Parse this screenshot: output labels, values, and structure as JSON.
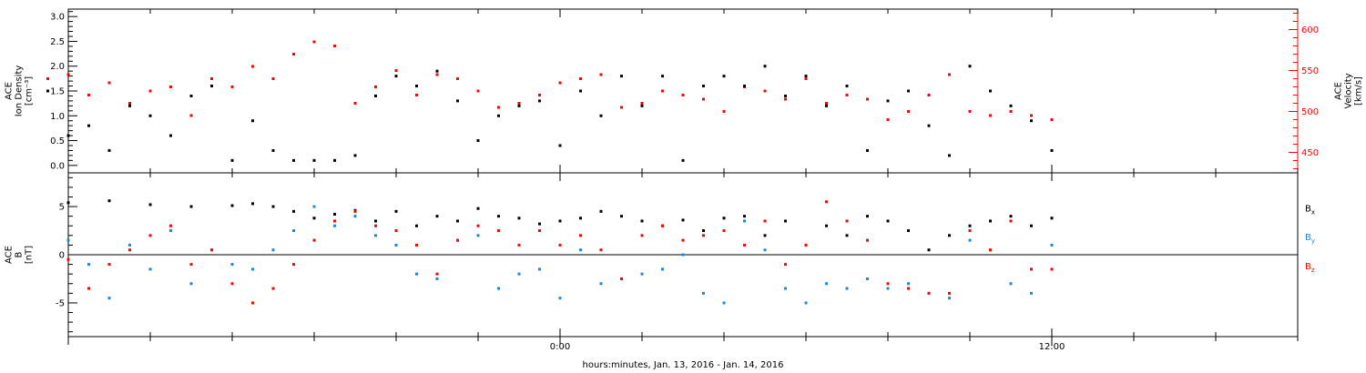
{
  "chart_data": [
    {
      "type": "scatter",
      "panel": "top",
      "ylabel_left_lines": [
        "ACE",
        "Ion Density",
        "[cm⁻³]"
      ],
      "ylabel_right_lines": [
        "ACE",
        "Velocity",
        "[km/s]"
      ],
      "y_left_ticks": [
        "0.0",
        "0.5",
        "1.0",
        "1.5",
        "2.0",
        "2.5",
        "3.0"
      ],
      "y_left_range": [
        -0.15,
        3.15
      ],
      "y_right_ticks": [
        "450",
        "500",
        "550",
        "600"
      ],
      "y_right_range": [
        425,
        625
      ],
      "colors": {
        "density": "#000000",
        "velocity": "#ff0000"
      },
      "series": [
        {
          "name": "Ion Density",
          "axis": "left",
          "color": "#000000",
          "x": [
            -12.5,
            -12.0,
            -11.5,
            -11.0,
            -10.5,
            -10.0,
            -9.5,
            -9.0,
            -8.5,
            -8.0,
            -7.5,
            -7.0,
            -6.5,
            -6.0,
            -5.5,
            -5.0,
            -4.5,
            -4.0,
            -3.5,
            -3.0,
            -2.5,
            -2.0,
            -1.5,
            -1.0,
            -0.5,
            0.0,
            0.5,
            1.0,
            1.5,
            2.0,
            2.5,
            3.0,
            3.5,
            4.0,
            4.5,
            5.0,
            5.5,
            6.0,
            6.5,
            7.0,
            7.5,
            8.0,
            8.5,
            9.0,
            9.5,
            10.0,
            10.5,
            11.0,
            11.5,
            12.0
          ],
          "y": [
            1.5,
            0.6,
            0.8,
            0.3,
            1.2,
            1.0,
            0.6,
            1.4,
            1.6,
            0.1,
            0.9,
            0.3,
            0.1,
            0.1,
            0.1,
            0.2,
            1.4,
            1.8,
            1.6,
            1.9,
            1.3,
            0.5,
            1.0,
            1.2,
            1.3,
            0.4,
            1.5,
            1.0,
            1.8,
            1.2,
            1.8,
            0.1,
            1.6,
            1.8,
            1.6,
            2.0,
            1.4,
            1.8,
            1.2,
            1.6,
            0.3,
            1.3,
            1.5,
            0.8,
            0.2,
            2.0,
            1.5,
            1.2,
            0.9,
            0.3
          ]
        },
        {
          "name": "Velocity",
          "axis": "right",
          "color": "#ff0000",
          "x": [
            -12.5,
            -12.0,
            -11.5,
            -11.0,
            -10.5,
            -10.0,
            -9.5,
            -9.0,
            -8.5,
            -8.0,
            -7.5,
            -7.0,
            -6.5,
            -6.0,
            -5.5,
            -5.0,
            -4.5,
            -4.0,
            -3.5,
            -3.0,
            -2.5,
            -2.0,
            -1.5,
            -1.0,
            -0.5,
            0.0,
            0.5,
            1.0,
            1.5,
            2.0,
            2.5,
            3.0,
            3.5,
            4.0,
            4.5,
            5.0,
            5.5,
            6.0,
            6.5,
            7.0,
            7.5,
            8.0,
            8.5,
            9.0,
            9.5,
            10.0,
            10.5,
            11.0,
            11.5,
            12.0
          ],
          "y": [
            540,
            545,
            520,
            535,
            510,
            525,
            530,
            495,
            540,
            530,
            555,
            540,
            570,
            585,
            580,
            510,
            530,
            550,
            520,
            545,
            540,
            525,
            505,
            510,
            520,
            535,
            540,
            545,
            505,
            510,
            525,
            520,
            515,
            500,
            530,
            525,
            515,
            540,
            510,
            520,
            515,
            490,
            500,
            520,
            545,
            500,
            495,
            500,
            495,
            490
          ]
        }
      ]
    },
    {
      "type": "scatter",
      "panel": "bottom",
      "ylabel_left_lines": [
        "ACE",
        "B",
        "[nT]"
      ],
      "y_ticks": [
        "-5",
        "0",
        "5"
      ],
      "y_range": [
        -8.5,
        8.5
      ],
      "x_ticks": [
        "0:00",
        "12:00"
      ],
      "x_tick_positions_hours": [
        0,
        12
      ],
      "x_range_hours": [
        -12,
        18
      ],
      "xlabel": "hours:minutes, Jan. 13, 2016 - Jan. 14, 2016",
      "legend": [
        {
          "label": "Bx",
          "base": "B",
          "sub": "x",
          "color": "#000000"
        },
        {
          "label": "By",
          "base": "B",
          "sub": "y",
          "color": "#1e88d6"
        },
        {
          "label": "Bz",
          "base": "B",
          "sub": "z",
          "color": "#ff0000"
        }
      ],
      "series": [
        {
          "name": "Bx",
          "color": "#000000",
          "x": [
            -12.0,
            -11.0,
            -10.0,
            -9.0,
            -8.0,
            -7.5,
            -7.0,
            -6.5,
            -6.0,
            -5.5,
            -5.0,
            -4.5,
            -4.0,
            -3.5,
            -3.0,
            -2.5,
            -2.0,
            -1.5,
            -1.0,
            -0.5,
            0.0,
            0.5,
            1.0,
            1.5,
            2.0,
            2.5,
            3.0,
            3.5,
            4.0,
            4.5,
            5.0,
            5.5,
            6.0,
            6.5,
            7.0,
            7.5,
            8.0,
            8.5,
            9.0,
            9.5,
            10.0,
            10.5,
            11.0,
            11.5,
            12.0
          ],
          "y": [
            5.4,
            5.6,
            5.2,
            5.0,
            5.1,
            5.3,
            5.0,
            4.5,
            3.8,
            4.2,
            4.6,
            3.5,
            4.5,
            3.0,
            4.0,
            3.5,
            4.8,
            4.0,
            3.8,
            3.2,
            3.5,
            3.8,
            4.5,
            4.0,
            3.5,
            3.0,
            3.6,
            2.5,
            3.8,
            4.0,
            2.0,
            3.5,
            1.0,
            3.0,
            2.0,
            4.0,
            3.5,
            2.5,
            0.5,
            2.0,
            3.0,
            3.5,
            4.0,
            3.0,
            3.8
          ]
        },
        {
          "name": "By",
          "color": "#1e88d6",
          "x": [
            -12.0,
            -11.5,
            -11.0,
            -10.5,
            -10.0,
            -9.5,
            -9.0,
            -8.5,
            -8.0,
            -7.5,
            -7.0,
            -6.5,
            -6.0,
            -5.5,
            -5.0,
            -4.5,
            -4.0,
            -3.5,
            -3.0,
            -2.5,
            -2.0,
            -1.5,
            -1.0,
            -0.5,
            0.0,
            0.5,
            1.0,
            1.5,
            2.0,
            2.5,
            3.0,
            3.5,
            4.0,
            4.5,
            5.0,
            5.5,
            6.0,
            6.5,
            7.0,
            7.5,
            8.0,
            8.5,
            9.0,
            9.5,
            10.0,
            10.5,
            11.0,
            11.5,
            12.0
          ],
          "y": [
            1.5,
            -1.0,
            -4.5,
            1.0,
            -1.5,
            2.5,
            -3.0,
            0.5,
            -1.0,
            -1.5,
            0.5,
            2.5,
            5.0,
            3.0,
            4.0,
            2.0,
            1.0,
            -2.0,
            -2.5,
            1.5,
            2.0,
            -3.5,
            -2.0,
            -1.5,
            -4.5,
            0.5,
            -3.0,
            -2.5,
            -2.0,
            -1.5,
            0.0,
            -4.0,
            -5.0,
            3.5,
            0.5,
            -3.5,
            -5.0,
            -3.0,
            -3.5,
            -2.5,
            -3.5,
            -3.0,
            -4.0,
            -4.5,
            1.5,
            0.5,
            -3.0,
            -4.0,
            1.0
          ]
        },
        {
          "name": "Bz",
          "color": "#ff0000",
          "x": [
            -12.0,
            -11.5,
            -11.0,
            -10.5,
            -10.0,
            -9.5,
            -9.0,
            -8.5,
            -8.0,
            -7.5,
            -7.0,
            -6.5,
            -6.0,
            -5.5,
            -5.0,
            -4.5,
            -4.0,
            -3.5,
            -3.0,
            -2.5,
            -2.0,
            -1.5,
            -1.0,
            -0.5,
            0.0,
            0.5,
            1.0,
            1.5,
            2.0,
            2.5,
            3.0,
            3.5,
            4.0,
            4.5,
            5.0,
            5.5,
            6.0,
            6.5,
            7.0,
            7.5,
            8.0,
            8.5,
            9.0,
            9.5,
            10.0,
            10.5,
            11.0,
            11.5,
            12.0
          ],
          "y": [
            -0.5,
            -3.5,
            -1.0,
            0.5,
            2.0,
            3.0,
            -1.0,
            0.5,
            -3.0,
            -5.0,
            -3.5,
            -1.0,
            1.5,
            3.5,
            4.5,
            3.0,
            2.5,
            1.0,
            -2.0,
            1.5,
            3.0,
            2.5,
            1.0,
            2.5,
            1.0,
            2.0,
            0.5,
            -2.5,
            2.0,
            3.0,
            1.5,
            2.0,
            2.5,
            1.0,
            3.5,
            -1.0,
            1.0,
            5.5,
            3.5,
            1.5,
            -3.0,
            -3.5,
            -4.0,
            -4.0,
            2.5,
            0.5,
            3.5,
            -1.5,
            -1.5
          ]
        }
      ]
    }
  ]
}
